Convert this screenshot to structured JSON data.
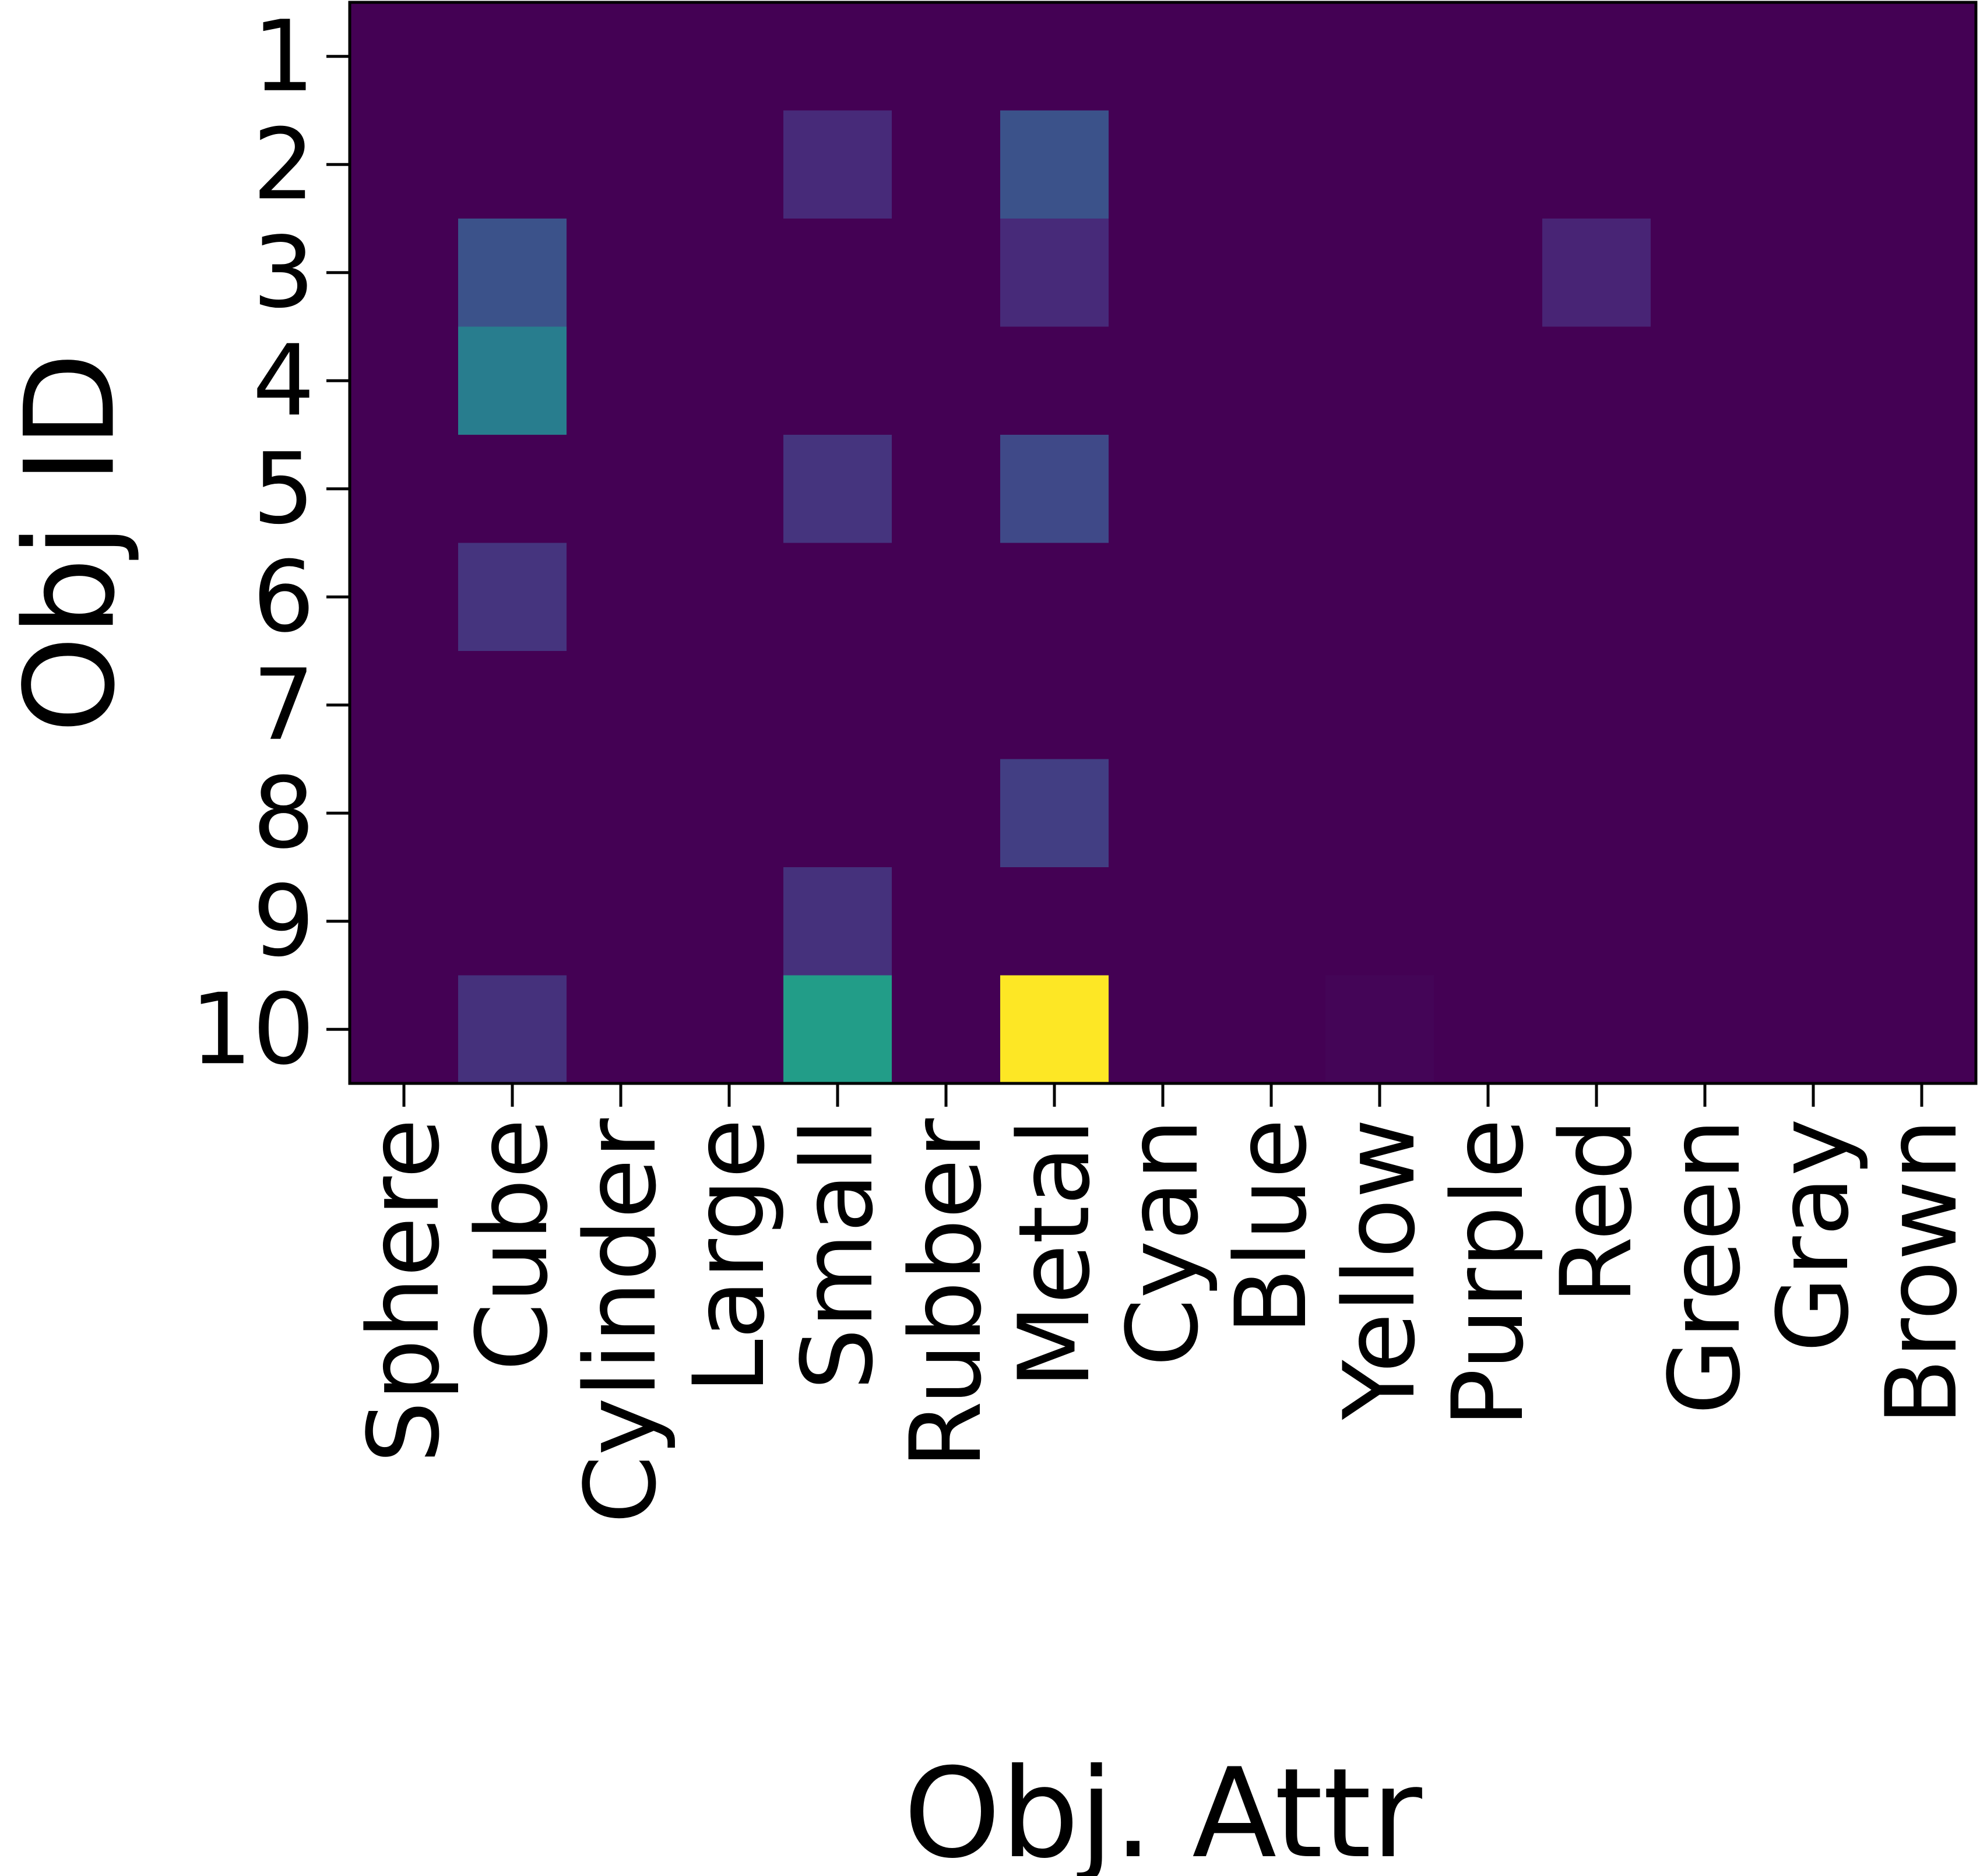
{
  "chart_data": {
    "type": "heatmap",
    "xlabel": "Obj. Attr",
    "ylabel": "Obj ID",
    "x_categories": [
      "Sphere",
      "Cube",
      "Cylinder",
      "Large",
      "Small",
      "Rubber",
      "Metal",
      "Cyan",
      "Blue",
      "Yellow",
      "Purple",
      "Red",
      "Green",
      "Gray",
      "Brown"
    ],
    "y_categories": [
      "1",
      "2",
      "3",
      "4",
      "5",
      "6",
      "7",
      "8",
      "9",
      "10"
    ],
    "values": [
      [
        0,
        0,
        0,
        0,
        0,
        0,
        0,
        0,
        0,
        0,
        0,
        0,
        0,
        0,
        0
      ],
      [
        0,
        0,
        0,
        0,
        0.12,
        0,
        0.25,
        0,
        0,
        0,
        0,
        0,
        0,
        0,
        0
      ],
      [
        0,
        0.25,
        0,
        0,
        0,
        0,
        0.12,
        0,
        0,
        0,
        0,
        0.1,
        0,
        0,
        0
      ],
      [
        0,
        0.42,
        0,
        0,
        0,
        0,
        0,
        0,
        0,
        0,
        0,
        0,
        0,
        0,
        0
      ],
      [
        0,
        0,
        0,
        0,
        0.15,
        0,
        0.22,
        0,
        0,
        0,
        0,
        0,
        0,
        0,
        0
      ],
      [
        0,
        0.15,
        0,
        0,
        0,
        0,
        0,
        0,
        0,
        0,
        0,
        0,
        0,
        0,
        0
      ],
      [
        0,
        0,
        0,
        0,
        0,
        0,
        0,
        0,
        0,
        0,
        0,
        0,
        0,
        0,
        0
      ],
      [
        0,
        0,
        0,
        0,
        0,
        0,
        0.18,
        0,
        0,
        0,
        0,
        0,
        0,
        0,
        0
      ],
      [
        0,
        0,
        0,
        0,
        0.14,
        0,
        0,
        0,
        0,
        0,
        0,
        0,
        0,
        0,
        0
      ],
      [
        0,
        0.14,
        0,
        0,
        0.55,
        0,
        1.0,
        0,
        0,
        0.01,
        0,
        0,
        0,
        0,
        0
      ]
    ],
    "colormap": "viridis",
    "grid": false
  }
}
